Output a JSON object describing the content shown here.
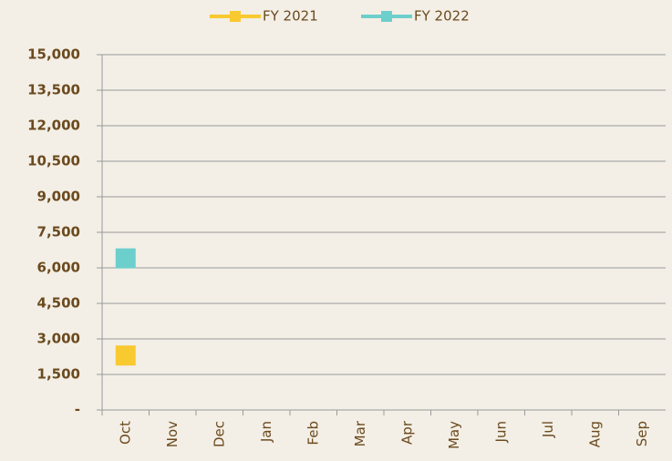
{
  "chart_data": {
    "type": "line",
    "categories": [
      "Oct",
      "Nov",
      "Dec",
      "Jan",
      "Feb",
      "Mar",
      "Apr",
      "May",
      "Jun",
      "Jul",
      "Aug",
      "Sep"
    ],
    "series": [
      {
        "name": "FY 2021",
        "color": "#f9c930",
        "values": [
          2300,
          null,
          null,
          null,
          null,
          null,
          null,
          null,
          null,
          null,
          null,
          null
        ]
      },
      {
        "name": "FY 2022",
        "color": "#6ccfcc",
        "values": [
          6400,
          null,
          null,
          null,
          null,
          null,
          null,
          null,
          null,
          null,
          null,
          null
        ]
      }
    ],
    "ylim": [
      0,
      15000
    ],
    "yticks": [
      {
        "value": 0,
        "label": "-"
      },
      {
        "value": 1500,
        "label": "1,500"
      },
      {
        "value": 3000,
        "label": "3,000"
      },
      {
        "value": 4500,
        "label": "4,500"
      },
      {
        "value": 6000,
        "label": "6,000"
      },
      {
        "value": 7500,
        "label": "7,500"
      },
      {
        "value": 9000,
        "label": "9,000"
      },
      {
        "value": 10500,
        "label": "10,500"
      },
      {
        "value": 12000,
        "label": "12,000"
      },
      {
        "value": 13500,
        "label": "13,500"
      },
      {
        "value": 15000,
        "label": "15,000"
      }
    ],
    "grid": true,
    "legend": "top"
  }
}
